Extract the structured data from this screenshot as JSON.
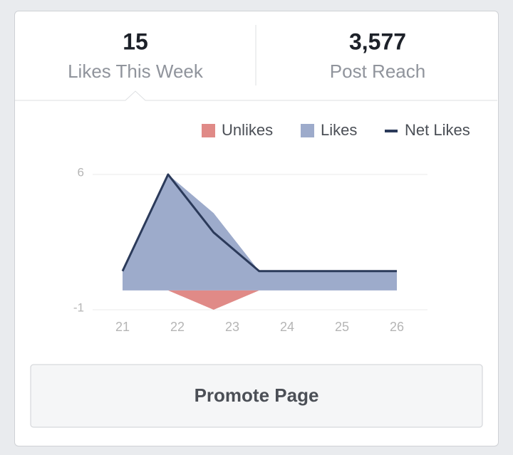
{
  "stats": [
    {
      "value": "15",
      "label": "Likes This Week"
    },
    {
      "value": "3,577",
      "label": "Post Reach"
    }
  ],
  "chart_data": {
    "type": "area",
    "x": [
      21,
      21.83,
      22.66,
      23.49,
      24.32,
      25.16,
      26
    ],
    "xlim": [
      21,
      26
    ],
    "xticks": [
      21,
      22,
      23,
      24,
      25,
      26
    ],
    "ylim": [
      -1,
      6
    ],
    "yticks": [
      6,
      -1
    ],
    "grid": true,
    "series": [
      {
        "name": "Unlikes",
        "color": "#e08a87",
        "style": "area",
        "values": [
          0,
          0,
          -1,
          0,
          0,
          0,
          0
        ]
      },
      {
        "name": "Likes",
        "color": "#9dabcb",
        "style": "area",
        "values": [
          1,
          6,
          4,
          1,
          1,
          1,
          1
        ]
      },
      {
        "name": "Net Likes",
        "color": "#2b3a5a",
        "style": "line",
        "values": [
          1,
          6,
          3,
          1,
          1,
          1,
          1
        ]
      }
    ]
  },
  "button": {
    "label": "Promote Page"
  }
}
